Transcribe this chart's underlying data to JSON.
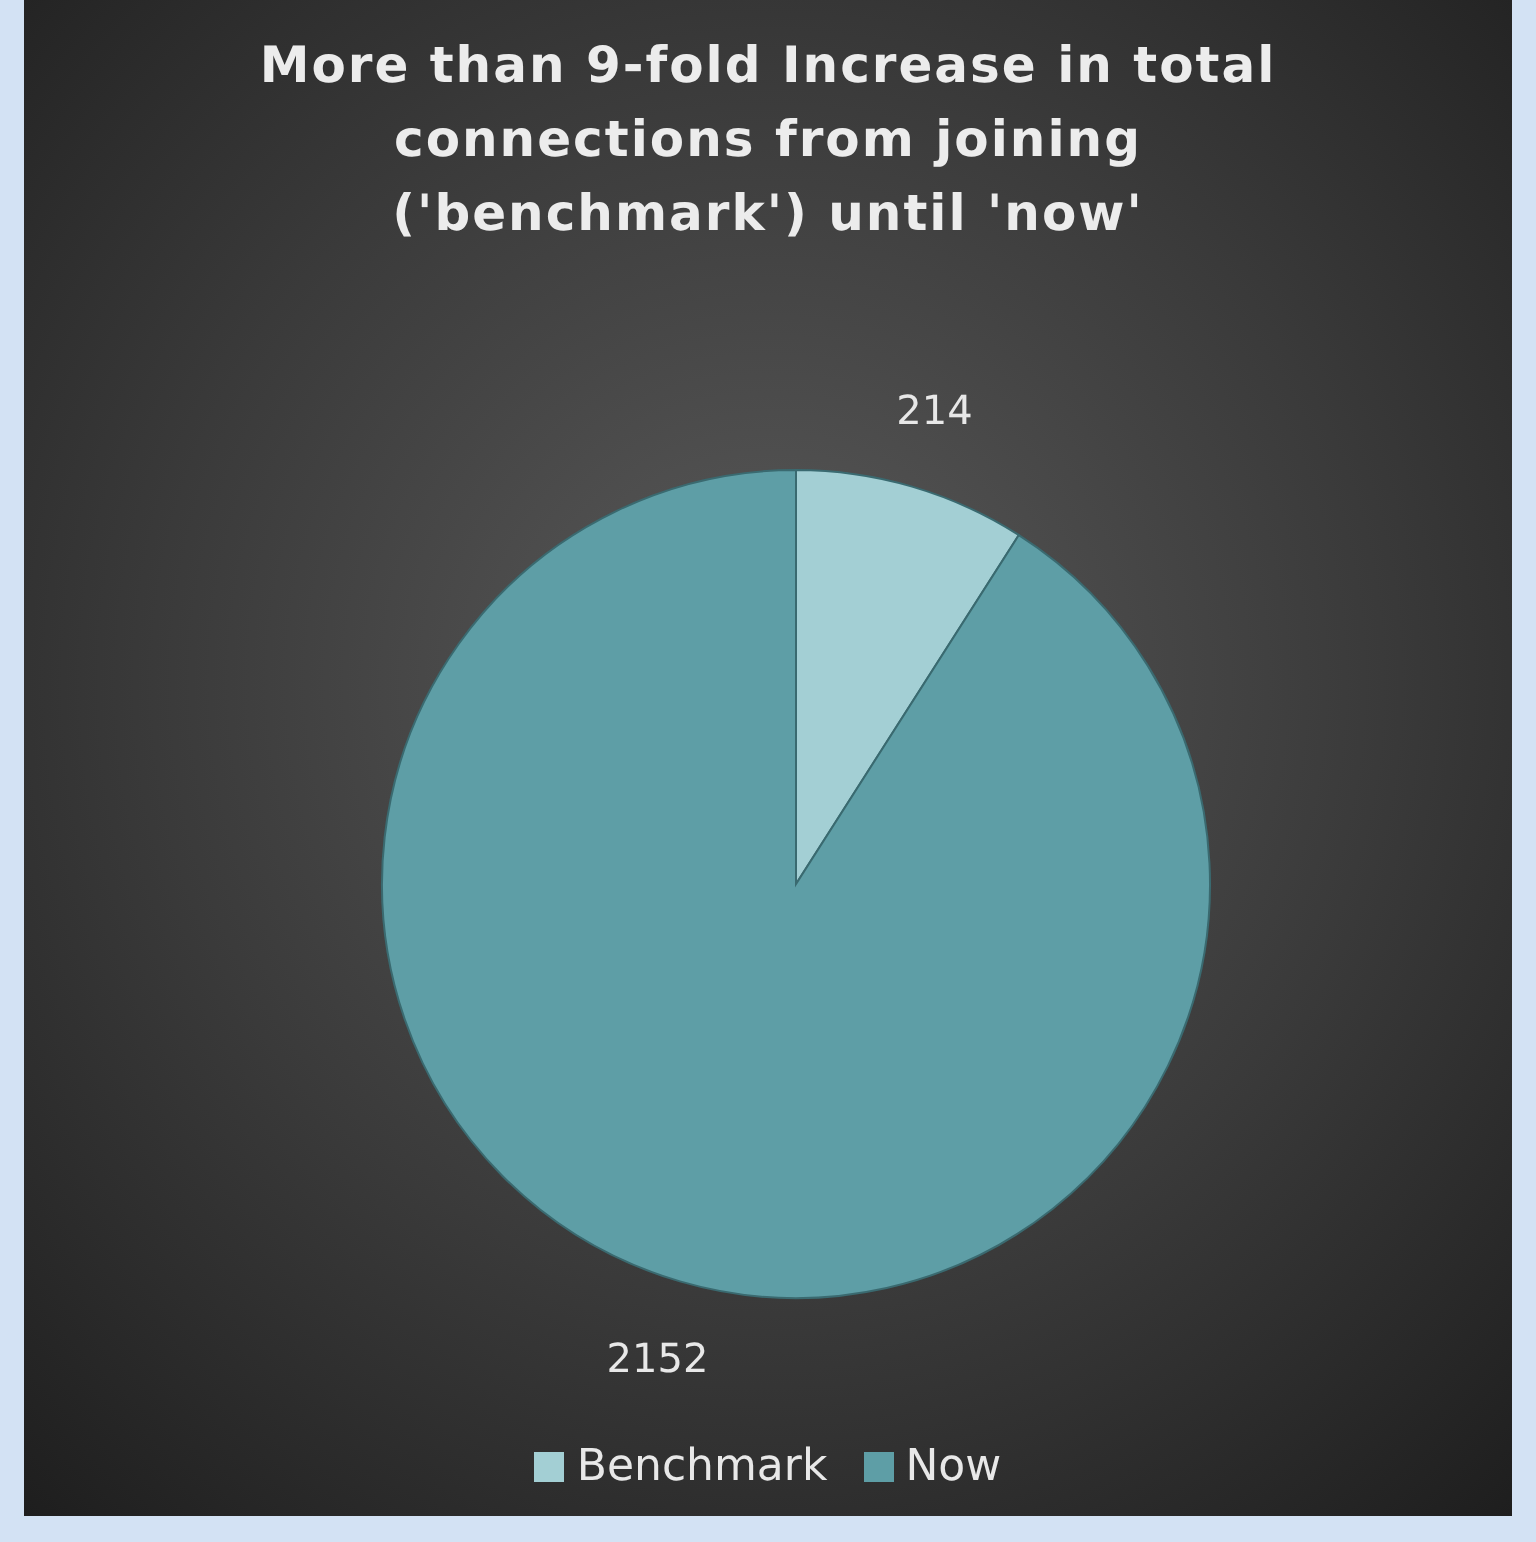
{
  "chart_data": {
    "type": "pie",
    "title": "More than 9-fold Increase in total connections from joining ('benchmark') until 'now'",
    "categories": [
      "Benchmark",
      "Now"
    ],
    "values": [
      214,
      2152
    ],
    "colors": [
      "#a3cfd4",
      "#5e9ea6"
    ],
    "data_labels": true,
    "legend": "bottom"
  }
}
